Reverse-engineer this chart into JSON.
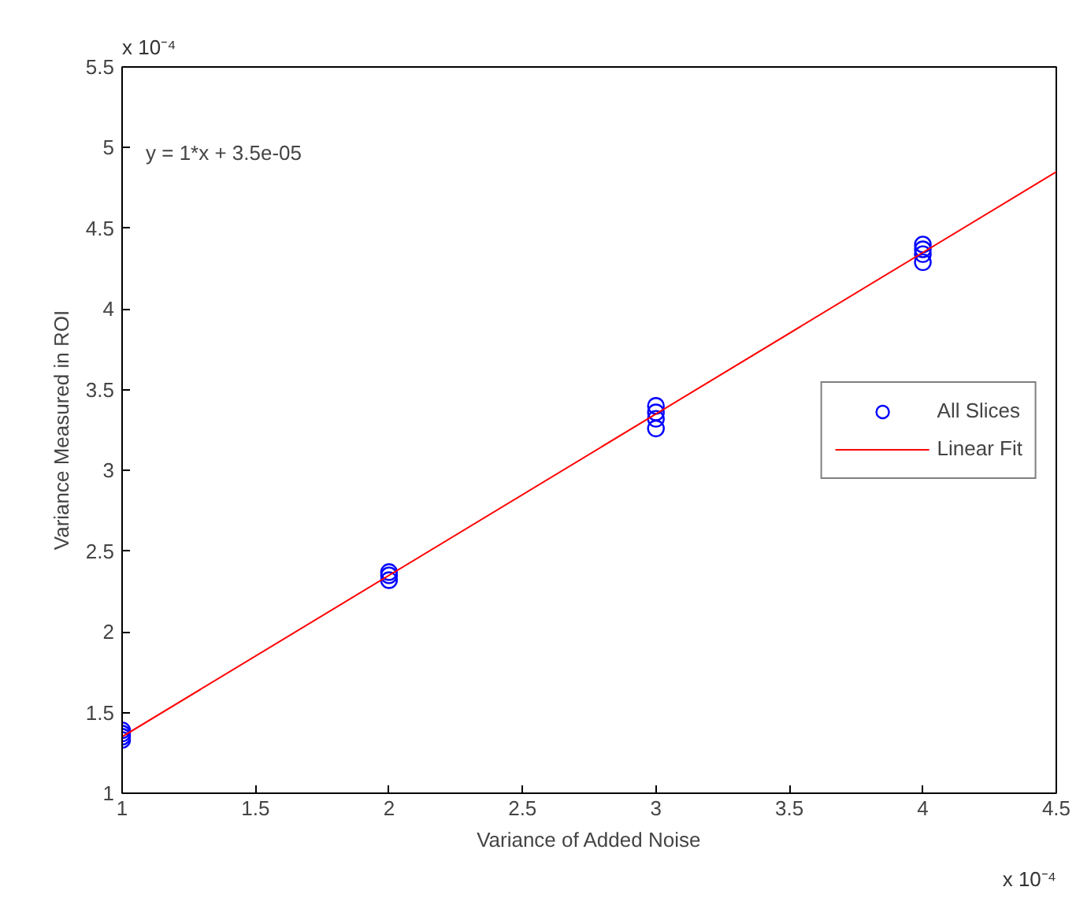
{
  "chart_data": {
    "type": "scatter",
    "xlabel": "Variance of Added Noise",
    "ylabel": "Variance Measured in ROI",
    "xlim": [
      1,
      4.5
    ],
    "xticks": [
      1,
      1.5,
      2,
      2.5,
      3,
      3.5,
      4,
      4.5
    ],
    "ylim": [
      1,
      5.5
    ],
    "yticks": [
      1,
      1.5,
      2,
      2.5,
      3,
      3.5,
      4,
      4.5,
      5,
      5.5
    ],
    "series": [
      {
        "name": "All Slices",
        "color": "#0000ff",
        "marker": "circle",
        "x": [
          1,
          1,
          1,
          1,
          2,
          2,
          2,
          3,
          3,
          3,
          3,
          4,
          4,
          4,
          4
        ],
        "values": [
          1.33,
          1.35,
          1.37,
          1.39,
          2.32,
          2.35,
          2.37,
          3.26,
          3.32,
          3.36,
          3.4,
          4.29,
          4.34,
          4.37,
          4.4
        ]
      },
      {
        "name": "Linear Fit",
        "type": "line",
        "color": "#ff0000",
        "x": [
          1,
          4.5
        ],
        "values": [
          1.35,
          4.85
        ]
      }
    ],
    "annotations": [
      "y = 1*x + 3.5e-05",
      "x 10⁻⁴",
      "x 10⁻⁴"
    ],
    "legend": "right",
    "grid": false
  }
}
